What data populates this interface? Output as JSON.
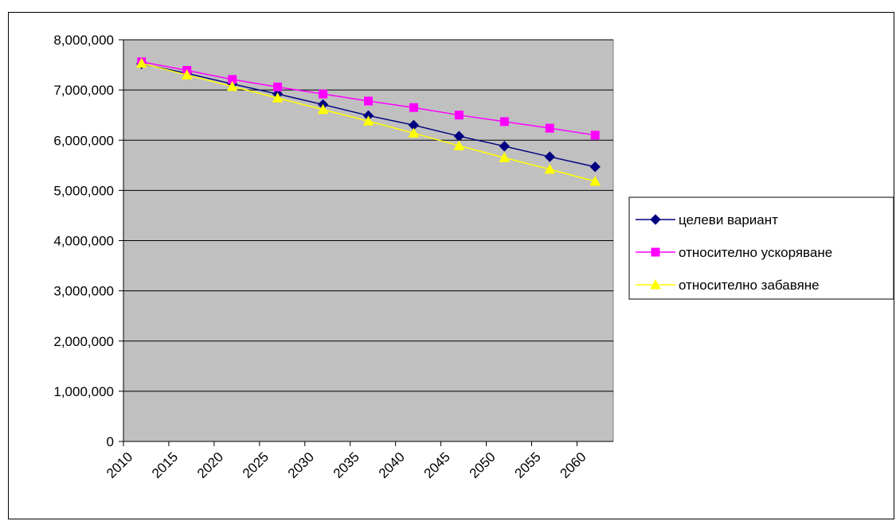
{
  "chart_data": {
    "type": "line",
    "title": "",
    "xlabel": "",
    "ylabel": "",
    "x": [
      2012,
      2017,
      2022,
      2027,
      2032,
      2037,
      2042,
      2047,
      2052,
      2057,
      2062
    ],
    "xlim": [
      2010,
      2064
    ],
    "ylim": [
      0,
      8000000
    ],
    "x_ticks": [
      2010,
      2015,
      2020,
      2025,
      2030,
      2035,
      2040,
      2045,
      2050,
      2055,
      2060
    ],
    "x_tick_labels": [
      "2010",
      "2015",
      "2020",
      "2025",
      "2030",
      "2035",
      "2040",
      "2045",
      "2050",
      "2055",
      "2060"
    ],
    "y_ticks": [
      0,
      1000000,
      2000000,
      3000000,
      4000000,
      5000000,
      6000000,
      7000000,
      8000000
    ],
    "y_tick_labels": [
      "0",
      "1,000,000",
      "2,000,000",
      "3,000,000",
      "4,000,000",
      "5,000,000",
      "6,000,000",
      "7,000,000",
      "8,000,000"
    ],
    "grid": true,
    "plot_background": "#c0c0c0",
    "legend_position": "right",
    "series": [
      {
        "name": "целеви вариант",
        "color": "#000080",
        "marker": "diamond",
        "values": [
          7520000,
          7330000,
          7120000,
          6920000,
          6710000,
          6490000,
          6300000,
          6080000,
          5880000,
          5670000,
          5470000
        ]
      },
      {
        "name": "относително ускоряване",
        "color": "#ff00ff",
        "marker": "square",
        "values": [
          7560000,
          7390000,
          7210000,
          7060000,
          6920000,
          6780000,
          6650000,
          6500000,
          6370000,
          6240000,
          6100000
        ]
      },
      {
        "name": "относително забавяне",
        "color": "#ffff00",
        "marker": "triangle",
        "values": [
          7530000,
          7300000,
          7070000,
          6840000,
          6610000,
          6380000,
          6140000,
          5890000,
          5650000,
          5420000,
          5180000
        ]
      }
    ]
  }
}
